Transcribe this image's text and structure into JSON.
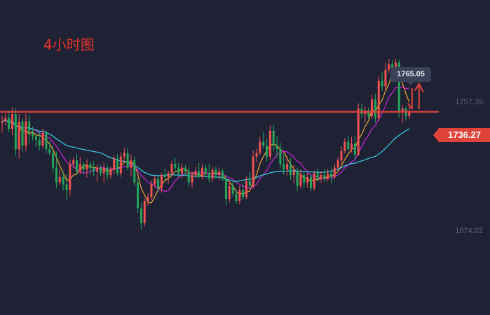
{
  "chart_data": {
    "type": "candlestick",
    "title": "4小时图",
    "y_axis_labels": [
      "1757.35",
      "1674.02"
    ],
    "tooltip_high": "1765.05",
    "current_price": "1736.27",
    "ylim": [
      1652,
      1790
    ],
    "candles": [
      [
        1730.1,
        1734.2,
        1725.0,
        1731.0
      ],
      [
        1731.0,
        1735.5,
        1728.9,
        1733.0
      ],
      [
        1733.0,
        1737.2,
        1725.2,
        1727.0
      ],
      [
        1727.0,
        1738.6,
        1723.4,
        1735.0
      ],
      [
        1735.0,
        1738.2,
        1712.5,
        1716.0
      ],
      [
        1716.0,
        1735.2,
        1711.0,
        1731.0
      ],
      [
        1731.0,
        1732.5,
        1714.5,
        1718.0
      ],
      [
        1718.0,
        1735.2,
        1715.0,
        1731.0
      ],
      [
        1731.0,
        1734.4,
        1719.0,
        1725.0
      ],
      [
        1725.0,
        1728.3,
        1720.7,
        1723.0
      ],
      [
        1723.0,
        1724.7,
        1717.2,
        1721.0
      ],
      [
        1721.0,
        1725.4,
        1715.3,
        1718.0
      ],
      [
        1718.0,
        1727.2,
        1716.4,
        1725.0
      ],
      [
        1725.0,
        1726.3,
        1713.7,
        1716.0
      ],
      [
        1716.0,
        1720.5,
        1712.6,
        1714.0
      ],
      [
        1714.0,
        1717.8,
        1703.1,
        1706.0
      ],
      [
        1706.0,
        1714.7,
        1694.9,
        1698.0
      ],
      [
        1698.0,
        1705.1,
        1696.5,
        1701.0
      ],
      [
        1701.0,
        1704.2,
        1693.6,
        1697.0
      ],
      [
        1697.0,
        1702.4,
        1688.6,
        1694.0
      ],
      [
        1694.0,
        1710.3,
        1690.9,
        1708.0
      ],
      [
        1708.0,
        1711.8,
        1705.6,
        1710.0
      ],
      [
        1710.0,
        1713.5,
        1701.8,
        1704.0
      ],
      [
        1704.0,
        1711.6,
        1702.3,
        1708.0
      ],
      [
        1708.0,
        1709.1,
        1702.5,
        1705.0
      ],
      [
        1705.0,
        1710.5,
        1700.6,
        1708.0
      ],
      [
        1708.0,
        1709.2,
        1702.3,
        1706.0
      ],
      [
        1706.0,
        1709.6,
        1701.3,
        1704.0
      ],
      [
        1704.0,
        1708.1,
        1698.4,
        1706.0
      ],
      [
        1706.0,
        1707.6,
        1701.5,
        1703.0
      ],
      [
        1703.0,
        1708.6,
        1697.8,
        1706.0
      ],
      [
        1706.0,
        1707.5,
        1699.5,
        1702.0
      ],
      [
        1702.0,
        1706.5,
        1700.0,
        1705.0
      ],
      [
        1705.0,
        1712.7,
        1702.6,
        1711.0
      ],
      [
        1711.0,
        1713.4,
        1701.7,
        1703.0
      ],
      [
        1703.0,
        1714.3,
        1701.0,
        1712.0
      ],
      [
        1712.0,
        1716.5,
        1708.7,
        1714.0
      ],
      [
        1714.0,
        1716.6,
        1704.5,
        1706.0
      ],
      [
        1706.0,
        1713.2,
        1701.4,
        1710.0
      ],
      [
        1710.0,
        1712.0,
        1696.0,
        1698.0
      ],
      [
        1698.0,
        1700.5,
        1681.3,
        1684.0
      ],
      [
        1684.0,
        1687.2,
        1672.5,
        1676.0
      ],
      [
        1676.0,
        1689.2,
        1674.3,
        1688.0
      ],
      [
        1688.0,
        1692.3,
        1685.4,
        1690.0
      ],
      [
        1690.0,
        1699.2,
        1688.4,
        1697.0
      ],
      [
        1697.0,
        1701.8,
        1695.4,
        1700.0
      ],
      [
        1700.0,
        1701.3,
        1693.0,
        1695.0
      ],
      [
        1695.0,
        1703.2,
        1692.5,
        1702.0
      ],
      [
        1702.0,
        1705.4,
        1699.0,
        1701.0
      ],
      [
        1701.0,
        1704.5,
        1697.3,
        1703.0
      ],
      [
        1703.0,
        1709.8,
        1701.5,
        1708.0
      ],
      [
        1708.0,
        1711.2,
        1703.7,
        1706.0
      ],
      [
        1706.0,
        1708.9,
        1700.6,
        1703.0
      ],
      [
        1703.0,
        1708.3,
        1700.1,
        1706.0
      ],
      [
        1706.0,
        1707.5,
        1701.4,
        1704.0
      ],
      [
        1704.0,
        1706.1,
        1696.1,
        1698.0
      ],
      [
        1698.0,
        1703.9,
        1695.2,
        1702.0
      ],
      [
        1702.0,
        1706.3,
        1700.5,
        1704.0
      ],
      [
        1704.0,
        1708.5,
        1700.2,
        1701.0
      ],
      [
        1701.0,
        1708.1,
        1699.6,
        1706.0
      ],
      [
        1706.0,
        1707.5,
        1701.3,
        1703.0
      ],
      [
        1703.0,
        1708.2,
        1698.0,
        1700.0
      ],
      [
        1700.0,
        1706.3,
        1698.3,
        1705.0
      ],
      [
        1705.0,
        1706.5,
        1700.2,
        1702.0
      ],
      [
        1702.0,
        1706.0,
        1699.3,
        1704.0
      ],
      [
        1704.0,
        1705.6,
        1698.8,
        1700.0
      ],
      [
        1700.0,
        1702.1,
        1685.6,
        1689.0
      ],
      [
        1689.0,
        1698.2,
        1687.4,
        1696.0
      ],
      [
        1696.0,
        1698.5,
        1690.5,
        1692.0
      ],
      [
        1692.0,
        1694.3,
        1686.5,
        1688.0
      ],
      [
        1688.0,
        1696.2,
        1686.3,
        1694.0
      ],
      [
        1694.0,
        1697.9,
        1688.7,
        1690.0
      ],
      [
        1690.0,
        1701.2,
        1688.9,
        1699.0
      ],
      [
        1699.0,
        1703.5,
        1694.6,
        1696.0
      ],
      [
        1696.0,
        1715.4,
        1694.6,
        1712.0
      ],
      [
        1712.0,
        1716.3,
        1708.8,
        1714.0
      ],
      [
        1714.0,
        1722.9,
        1712.6,
        1720.0
      ],
      [
        1720.0,
        1725.5,
        1716.3,
        1718.0
      ],
      [
        1718.0,
        1722.1,
        1709.4,
        1712.0
      ],
      [
        1712.0,
        1728.9,
        1710.2,
        1726.0
      ],
      [
        1726.0,
        1729.2,
        1715.1,
        1718.0
      ],
      [
        1718.0,
        1723.2,
        1711.3,
        1716.0
      ],
      [
        1716.0,
        1719.5,
        1705.6,
        1708.0
      ],
      [
        1708.0,
        1713.4,
        1702.1,
        1705.0
      ],
      [
        1705.0,
        1712.2,
        1701.6,
        1708.0
      ],
      [
        1708.0,
        1711.3,
        1699.3,
        1702.0
      ],
      [
        1702.0,
        1707.4,
        1697.5,
        1704.0
      ],
      [
        1704.0,
        1706.0,
        1693.2,
        1696.0
      ],
      [
        1696.0,
        1705.1,
        1694.7,
        1702.0
      ],
      [
        1702.0,
        1703.9,
        1695.2,
        1698.0
      ],
      [
        1698.0,
        1703.3,
        1695.3,
        1701.0
      ],
      [
        1701.0,
        1702.7,
        1693.2,
        1695.0
      ],
      [
        1695.0,
        1704.4,
        1693.5,
        1703.0
      ],
      [
        1703.0,
        1705.4,
        1698.5,
        1700.0
      ],
      [
        1700.0,
        1704.2,
        1697.8,
        1702.0
      ],
      [
        1702.0,
        1705.2,
        1698.1,
        1700.0
      ],
      [
        1700.0,
        1705.4,
        1698.5,
        1703.0
      ],
      [
        1703.0,
        1706.1,
        1697.5,
        1701.0
      ],
      [
        1701.0,
        1708.2,
        1699.6,
        1706.0
      ],
      [
        1706.0,
        1711.8,
        1704.6,
        1710.0
      ],
      [
        1710.0,
        1717.4,
        1708.2,
        1715.0
      ],
      [
        1715.0,
        1721.9,
        1713.6,
        1720.0
      ],
      [
        1720.0,
        1723.4,
        1715.3,
        1716.0
      ],
      [
        1716.0,
        1722.6,
        1714.3,
        1719.0
      ],
      [
        1719.0,
        1723.3,
        1710.4,
        1713.0
      ],
      [
        1713.0,
        1740.9,
        1712.4,
        1738.0
      ],
      [
        1738.0,
        1740.8,
        1732.7,
        1735.0
      ],
      [
        1735.0,
        1739.2,
        1730.6,
        1737.0
      ],
      [
        1737.0,
        1738.5,
        1732.4,
        1734.0
      ],
      [
        1734.0,
        1745.8,
        1732.3,
        1743.0
      ],
      [
        1743.0,
        1746.1,
        1730.3,
        1733.0
      ],
      [
        1733.0,
        1755.4,
        1731.4,
        1753.0
      ],
      [
        1753.0,
        1757.7,
        1747.5,
        1750.0
      ],
      [
        1750.0,
        1762.8,
        1747.8,
        1759.0
      ],
      [
        1759.0,
        1765.0,
        1757.2,
        1762.0
      ],
      [
        1762.0,
        1764.3,
        1758.2,
        1760.0
      ],
      [
        1760.0,
        1765.1,
        1757.1,
        1763.0
      ],
      [
        1763.0,
        1764.7,
        1733.0,
        1736.0
      ],
      [
        1736.0,
        1740.2,
        1730.4,
        1738.0
      ],
      [
        1738.0,
        1739.2,
        1731.6,
        1734.0
      ],
      [
        1734.0,
        1738.9,
        1732.4,
        1736.3
      ]
    ]
  }
}
